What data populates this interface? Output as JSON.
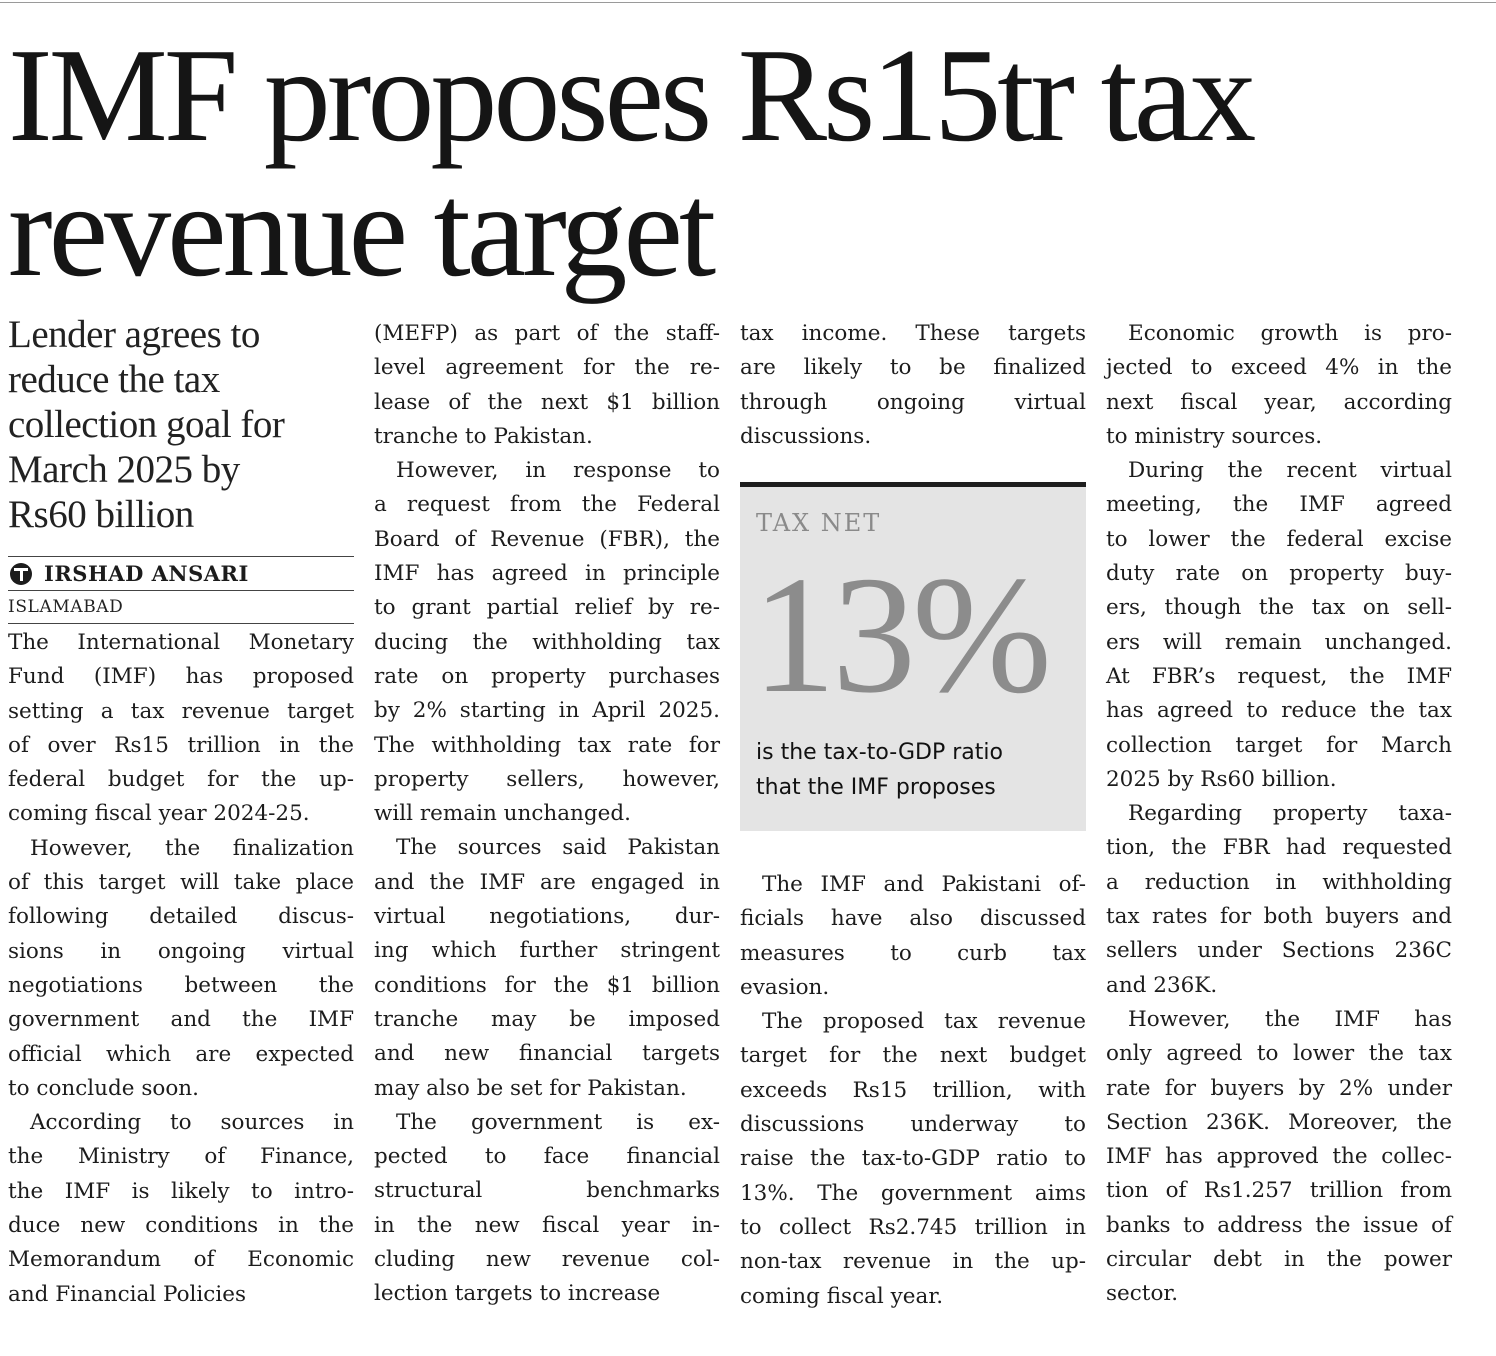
{
  "headline": {
    "line1": "IMF proposes Rs15tr tax",
    "line2": "revenue target"
  },
  "subhead": [
    "Lender agrees to",
    "reduce the tax",
    "collection goal for",
    "March 2025 by",
    "Rs60 billion"
  ],
  "byline": {
    "author": "IRSHAD ANSARI",
    "dateline": "ISLAMABAD"
  },
  "infobox": {
    "label": "TAX NET",
    "figure": "13%",
    "caption": [
      "is the tax-to-GDP ratio",
      "that the IMF proposes"
    ]
  },
  "columns": {
    "col1": [
      [
        "The International Monetary",
        "Fund (IMF) has proposed",
        "setting a tax revenue target",
        "of over Rs15 trillion in the",
        "federal budget for the up-",
        "coming fiscal year 2024-25."
      ],
      [
        "   However, the finalization",
        "of this target will take place",
        "following detailed discus-",
        "sions in ongoing virtual",
        "negotiations between the",
        "government and the IMF",
        "official which are expected",
        "to conclude soon."
      ],
      [
        "   According to sources in",
        "the Ministry of Finance,",
        "the IMF is likely to intro-",
        "duce new conditions in the",
        "Memorandum of Economic",
        "and Financial Policies"
      ]
    ],
    "col2": [
      [
        "(MEFP) as part of the staff-",
        "level agreement for the re-",
        "lease of the next $1 billion",
        "tranche to Pakistan."
      ],
      [
        "   However, in response to",
        "a request from the Federal",
        "Board of Revenue (FBR), the",
        "IMF has agreed in principle",
        "to grant partial relief by re-",
        "ducing the withholding tax",
        "rate on property purchases",
        "by 2% starting in April 2025.",
        "The withholding tax rate for",
        "property sellers, however,",
        "will remain unchanged."
      ],
      [
        "   The sources said Pakistan",
        "and the IMF are engaged in",
        "virtual negotiations, dur-",
        "ing which further stringent",
        "conditions for the $1 billion",
        "tranche may be imposed",
        "and new financial targets",
        "may also be set for Pakistan."
      ],
      [
        "   The government is ex-",
        "pected to face financial",
        "structural benchmarks",
        "in the new fiscal year in-",
        "cluding new revenue col-",
        "lection targets to increase"
      ]
    ],
    "col3_top": [
      [
        "tax income. These targets",
        "are likely to be finalized",
        "through ongoing virtual",
        "discussions."
      ]
    ],
    "col3_bottom": [
      [
        "   The IMF and Pakistani of-",
        "ficials have also discussed",
        "measures to curb tax",
        "evasion."
      ],
      [
        "   The proposed tax revenue",
        "target for the next budget",
        "exceeds Rs15 trillion, with",
        "discussions underway to",
        "raise the tax-to-GDP ratio to",
        "13%. The government aims",
        "to collect Rs2.745 trillion in",
        "non-tax revenue in the up-",
        "coming fiscal year."
      ]
    ],
    "col4": [
      [
        "   Economic growth is pro-",
        "jected to exceed 4% in the",
        "next fiscal year, according",
        "to ministry sources."
      ],
      [
        "   During the recent virtual",
        "meeting, the IMF agreed",
        "to lower the federal excise",
        "duty rate on property buy-",
        "ers, though the tax on sell-",
        "ers will remain unchanged.",
        "At FBR’s request, the IMF",
        "has agreed to reduce the tax",
        "collection target for March",
        "2025 by Rs60 billion."
      ],
      [
        "   Regarding property taxa-",
        "tion, the FBR had requested",
        "a reduction in withholding",
        "tax rates for both buyers and",
        "sellers under Sections 236C",
        "and 236K."
      ],
      [
        "   However, the IMF has",
        "only agreed to lower the tax",
        "rate for buyers by 2% under",
        "Section 236K. Moreover, the",
        "IMF has approved the collec-",
        "tion of Rs1.257 trillion from",
        "banks to address the issue of",
        "circular debt in the power",
        "sector."
      ]
    ]
  }
}
